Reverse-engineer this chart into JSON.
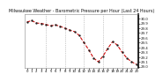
{
  "title": "Milwaukee Weather - Barometric Pressure per Hour (Last 24 Hours)",
  "hours": [
    0,
    1,
    2,
    3,
    4,
    5,
    6,
    7,
    8,
    9,
    10,
    11,
    12,
    13,
    14,
    15,
    16,
    17,
    18,
    19,
    20,
    21,
    22,
    23
  ],
  "pressure": [
    29.93,
    29.96,
    29.91,
    29.9,
    29.88,
    29.85,
    29.87,
    29.84,
    29.8,
    29.76,
    29.73,
    29.65,
    29.5,
    29.35,
    29.18,
    29.1,
    29.22,
    29.38,
    29.52,
    29.45,
    29.3,
    29.18,
    29.1,
    29.05
  ],
  "line_color": "#cc0000",
  "marker_color": "#222222",
  "bg_color": "#ffffff",
  "grid_color": "#999999",
  "title_color": "#111111",
  "tick_label_color": "#111111",
  "ylim_min": 28.98,
  "ylim_max": 30.1,
  "ytick_values": [
    29.0,
    29.1,
    29.2,
    29.3,
    29.4,
    29.5,
    29.6,
    29.7,
    29.8,
    29.9,
    30.0
  ],
  "ytick_labels": [
    "29.0",
    "29.1",
    "29.2",
    "29.3",
    "29.4",
    "29.5",
    "29.6",
    "29.7",
    "29.8",
    "29.9",
    "30.0"
  ],
  "title_fontsize": 3.5,
  "tick_fontsize": 2.8,
  "line_width": 0.75,
  "marker_size": 1.4,
  "vgrid_positions": [
    4,
    8,
    12,
    16,
    20
  ]
}
